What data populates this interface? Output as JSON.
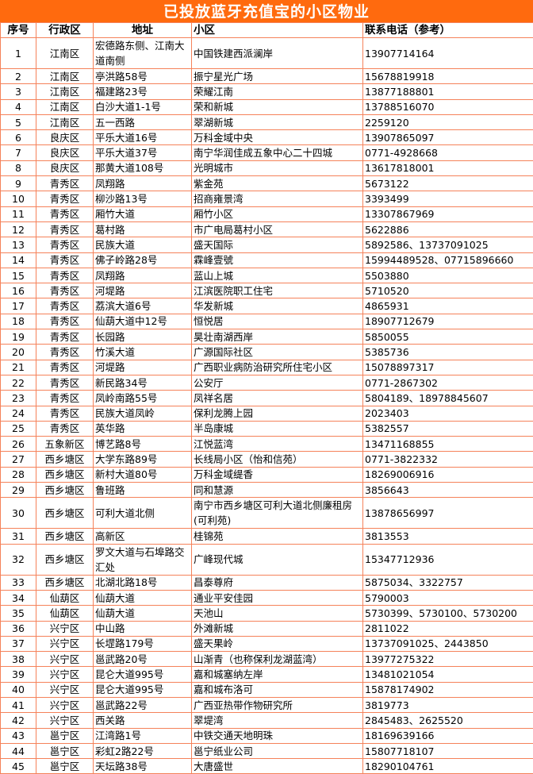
{
  "title": "已投放蓝牙充值宝的小区物业",
  "headers": [
    "序号",
    "行政区",
    "地址",
    "小区",
    "联系电话（参考）"
  ],
  "colors": {
    "title_bg": "#FF6A0E",
    "border": "#F5825A"
  },
  "rows": [
    [
      "1",
      "江南区",
      "宏德路东侧、江南大道南侧",
      "中国铁建西派澜岸",
      "13907714164"
    ],
    [
      "2",
      "江南区",
      "亭洪路58号",
      "振宁星光广场",
      "15678819918"
    ],
    [
      "3",
      "江南区",
      "福建路23号",
      "荣耀江南",
      "13877188801"
    ],
    [
      "4",
      "江南区",
      "白沙大道1-1号",
      "荣和新城",
      "13788516070"
    ],
    [
      "5",
      "江南区",
      "五一西路",
      "翠湖新城",
      "2259120"
    ],
    [
      "6",
      "良庆区",
      "平乐大道16号",
      "万科金域中央",
      "13907865097"
    ],
    [
      "7",
      "良庆区",
      "平乐大道37号",
      "南宁华润佳成五象中心二十四城",
      "0771-4928668"
    ],
    [
      "8",
      "良庆区",
      "那黄大道108号",
      "光明城市",
      "13617818001"
    ],
    [
      "9",
      "青秀区",
      "凤翔路",
      "紫金苑",
      "5673122"
    ],
    [
      "10",
      "青秀区",
      "柳沙路13号",
      "招商雍景湾",
      "3393499"
    ],
    [
      "11",
      "青秀区",
      "厢竹大道",
      "厢竹小区",
      "13307867969"
    ],
    [
      "12",
      "青秀区",
      "葛村路",
      "市广电局葛村小区",
      "5622886"
    ],
    [
      "13",
      "青秀区",
      "民族大道",
      "盛天国际",
      "5892586、13737091025"
    ],
    [
      "14",
      "青秀区",
      "佛子岭路28号",
      "霖峰壹號",
      "15994489528、07715896660"
    ],
    [
      "15",
      "青秀区",
      "凤翔路",
      "蓝山上城",
      "5503880"
    ],
    [
      "16",
      "青秀区",
      "河堤路",
      "江滨医院职工住宅",
      "5710520"
    ],
    [
      "17",
      "青秀区",
      "荔滨大道6号",
      "华发新城",
      "4865931"
    ],
    [
      "18",
      "青秀区",
      "仙葫大道中12号",
      "恒悦居",
      "18907712679"
    ],
    [
      "19",
      "青秀区",
      "长园路",
      "昊壮南湖西岸",
      "5850055"
    ],
    [
      "20",
      "青秀区",
      "竹溪大道",
      "广源国际社区",
      "5385736"
    ],
    [
      "21",
      "青秀区",
      "河堤路",
      "广西职业病防治研究所住宅小区",
      "15078897317"
    ],
    [
      "22",
      "青秀区",
      "新民路34号",
      "公安厅",
      "0771-2867302"
    ],
    [
      "23",
      "青秀区",
      "凤岭南路55号",
      "凤祥名居",
      "5804189、18978845607"
    ],
    [
      "24",
      "青秀区",
      "民族大道凤岭",
      "保利龙腾上园",
      "2023403"
    ],
    [
      "25",
      "青秀区",
      "英华路",
      "半岛康城",
      "5382557"
    ],
    [
      "26",
      "五象新区",
      "博艺路8号",
      "江悦蓝湾",
      "13471168855"
    ],
    [
      "27",
      "西乡塘区",
      "大学东路89号",
      "长线局小区（怡和信苑）",
      "0771-3822332"
    ],
    [
      "28",
      "西乡塘区",
      "新村大道80号",
      "万科金域缇香",
      "18269006916"
    ],
    [
      "29",
      "西乡塘区",
      "鲁班路",
      "同和慧源",
      "3856643"
    ],
    [
      "30",
      "西乡塘区",
      "可利大道北侧",
      "南宁市西乡塘区可利大道北侧廉租房(可利苑)",
      "13878656997"
    ],
    [
      "31",
      "西乡塘区",
      "高新区",
      "桂锦苑",
      "3813553"
    ],
    [
      "32",
      "西乡塘区",
      "罗文大道与石埠路交汇处",
      "广峰现代城",
      "15347712936"
    ],
    [
      "33",
      "西乡塘区",
      "北湖北路18号",
      "昌泰尊府",
      "5875034、3322757"
    ],
    [
      "34",
      "仙葫区",
      "仙葫大道",
      "通业平安佳园",
      "5790003"
    ],
    [
      "35",
      "仙葫区",
      "仙葫大道",
      "天池山",
      "5730399、5730100、5730200"
    ],
    [
      "36",
      "兴宁区",
      "中山路",
      "外滩新城",
      "2811022"
    ],
    [
      "37",
      "兴宁区",
      "长堽路179号",
      "盛天果岭",
      "13737091025、2443850"
    ],
    [
      "38",
      "兴宁区",
      "邕武路20号",
      "山渐青（也称保利龙湖蓝湾）",
      "13977275322"
    ],
    [
      "39",
      "兴宁区",
      "昆仑大道995号",
      "嘉和城塞纳左岸",
      "13481021054"
    ],
    [
      "40",
      "兴宁区",
      "昆仑大道995号",
      "嘉和城布洛可",
      "15878174902"
    ],
    [
      "41",
      "兴宁区",
      "邕武路22号",
      "广西亚热带作物研究所",
      "3819773"
    ],
    [
      "42",
      "兴宁区",
      "西关路",
      "翠堤湾",
      "2845483、2625520"
    ],
    [
      "43",
      "邕宁区",
      "江湾路1号",
      "中铁交通天地明珠",
      "18169639166"
    ],
    [
      "44",
      "邕宁区",
      "彩虹2路22号",
      "邕宁纸业公司",
      "15807718107"
    ],
    [
      "45",
      "邕宁区",
      "天坛路38号",
      "大唐盛世",
      "18290104761"
    ]
  ]
}
